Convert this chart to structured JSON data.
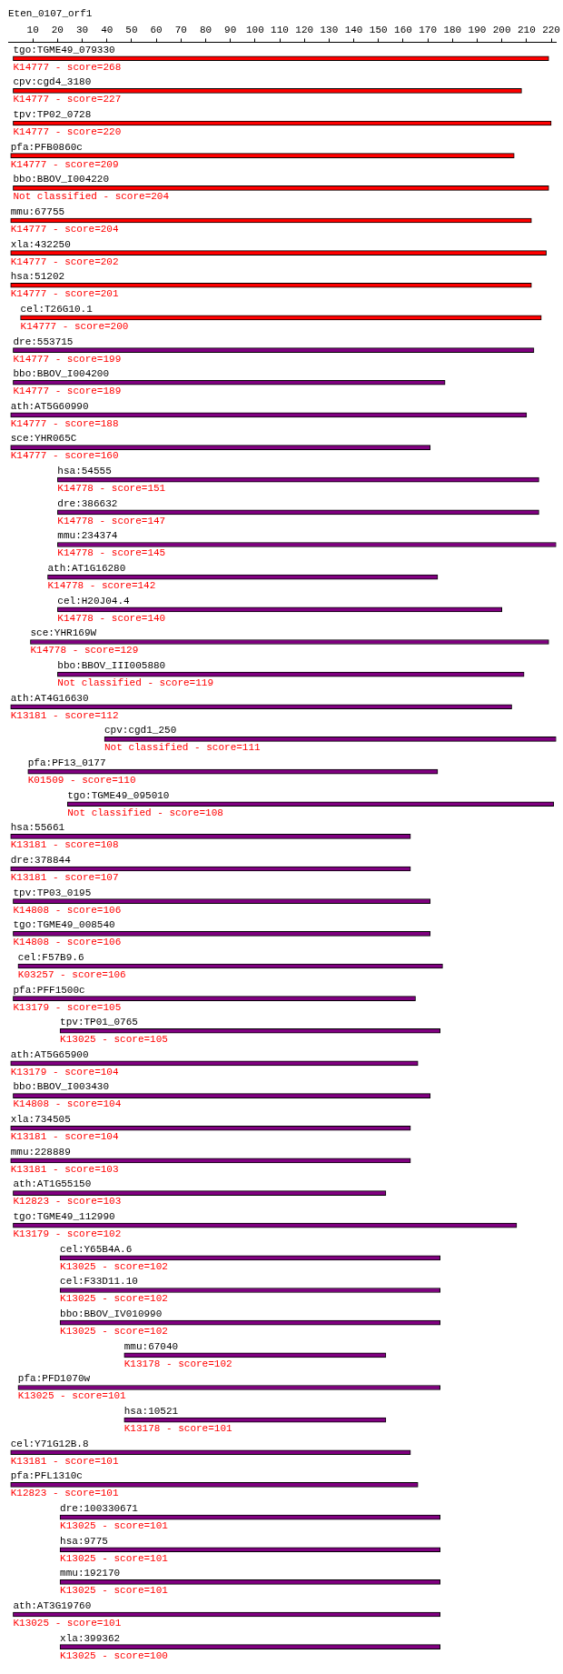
{
  "chart_data": {
    "type": "bar",
    "orientation": "horizontal",
    "title": "Eten_0107_orf1",
    "categories": [
      "tgo:TGME49_079330",
      "cpv:cgd4_3180",
      "tpv:TP02_0728",
      "pfa:PFB0860c",
      "bbo:BBOV_I004220",
      "mmu:67755",
      "xla:432250",
      "hsa:51202",
      "cel:T26G10.1",
      "dre:553715",
      "bbo:BBOV_I004200",
      "ath:AT5G60990",
      "sce:YHR065C",
      "hsa:54555",
      "dre:386632",
      "mmu:234374",
      "ath:AT1G16280",
      "cel:H20J04.4",
      "sce:YHR169W",
      "bbo:BBOV_III005880",
      "ath:AT4G16630",
      "cpv:cgd1_250",
      "pfa:PF13_0177",
      "tgo:TGME49_095010",
      "hsa:55661",
      "dre:378844",
      "tpv:TP03_0195",
      "tgo:TGME49_008540",
      "cel:F57B9.6",
      "pfa:PFF1500c",
      "tpv:TP01_0765",
      "ath:AT5G65900",
      "bbo:BBOV_I003430",
      "xla:734505",
      "mmu:228889",
      "ath:AT1G55150",
      "tgo:TGME49_112990",
      "cel:Y65B4A.6",
      "cel:F33D11.10",
      "bbo:BBOV_IV010990",
      "mmu:67040",
      "pfa:PFD1070w",
      "hsa:10521",
      "cel:Y71G12B.8",
      "pfa:PFL1310c",
      "dre:100330671",
      "hsa:9775",
      "mmu:192170",
      "ath:AT3G19760",
      "xla:399362"
    ],
    "base": [
      2,
      2,
      2,
      1,
      2,
      1,
      1,
      1,
      5,
      2,
      2,
      1,
      1,
      20,
      20,
      20,
      16,
      20,
      9,
      20,
      1,
      39,
      8,
      24,
      1,
      1,
      2,
      2,
      4,
      2,
      21,
      1,
      2,
      1,
      1,
      2,
      2,
      21,
      21,
      21,
      47,
      4,
      47,
      1,
      1,
      21,
      21,
      21,
      2,
      21
    ],
    "values": [
      217,
      206,
      218,
      204,
      217,
      211,
      217,
      211,
      211,
      211,
      175,
      209,
      170,
      195,
      195,
      202,
      158,
      180,
      210,
      189,
      203,
      183,
      166,
      197,
      162,
      162,
      169,
      169,
      172,
      163,
      154,
      165,
      169,
      162,
      162,
      151,
      204,
      154,
      154,
      154,
      106,
      171,
      106,
      162,
      165,
      154,
      154,
      154,
      173,
      154
    ],
    "colors": [
      "#ff0000",
      "#ff0000",
      "#ff0000",
      "#ff0000",
      "#ff0000",
      "#ff0000",
      "#ff0000",
      "#ff0000",
      "#ff0000",
      "#800080",
      "#800080",
      "#800080",
      "#800080",
      "#800080",
      "#800080",
      "#800080",
      "#800080",
      "#800080",
      "#800080",
      "#800080",
      "#800080",
      "#800080",
      "#800080",
      "#800080",
      "#800080",
      "#800080",
      "#800080",
      "#800080",
      "#800080",
      "#800080",
      "#800080",
      "#800080",
      "#800080",
      "#800080",
      "#800080",
      "#800080",
      "#800080",
      "#800080",
      "#800080",
      "#800080",
      "#800080",
      "#800080",
      "#800080",
      "#800080",
      "#800080",
      "#800080",
      "#800080",
      "#800080",
      "#800080",
      "#800080"
    ],
    "annotations": [
      "K14777 - score=268",
      "K14777 - score=227",
      "K14777 - score=220",
      "K14777 - score=209",
      "Not classified - score=204",
      "K14777 - score=204",
      "K14777 - score=202",
      "K14777 - score=201",
      "K14777 - score=200",
      "K14777 - score=199",
      "K14777 - score=189",
      "K14777 - score=188",
      "K14777 - score=160",
      "K14778 - score=151",
      "K14778 - score=147",
      "K14778 - score=145",
      "K14778 - score=142",
      "K14778 - score=140",
      "K14778 - score=129",
      "Not classified - score=119",
      "K13181 - score=112",
      "Not classified - score=111",
      "K01509 - score=110",
      "Not classified - score=108",
      "K13181 - score=108",
      "K13181 - score=107",
      "K14808 - score=106",
      "K14808 - score=106",
      "K03257 - score=106",
      "K13179 - score=105",
      "K13025 - score=105",
      "K13179 - score=104",
      "K14808 - score=104",
      "K13181 - score=104",
      "K13181 - score=103",
      "K12823 - score=103",
      "K13179 - score=102",
      "K13025 - score=102",
      "K13025 - score=102",
      "K13025 - score=102",
      "K13178 - score=102",
      "K13025 - score=101",
      "K13178 - score=101",
      "K13181 - score=101",
      "K12823 - score=101",
      "K13025 - score=101",
      "K13025 - score=101",
      "K13025 - score=101",
      "K13025 - score=101",
      "K13025 - score=100"
    ],
    "xlim": [
      0,
      222
    ],
    "xticks": [
      10,
      20,
      30,
      40,
      50,
      60,
      70,
      80,
      90,
      100,
      110,
      120,
      130,
      140,
      150,
      160,
      170,
      180,
      190,
      200,
      210,
      220
    ],
    "grid": false,
    "legend": false
  }
}
